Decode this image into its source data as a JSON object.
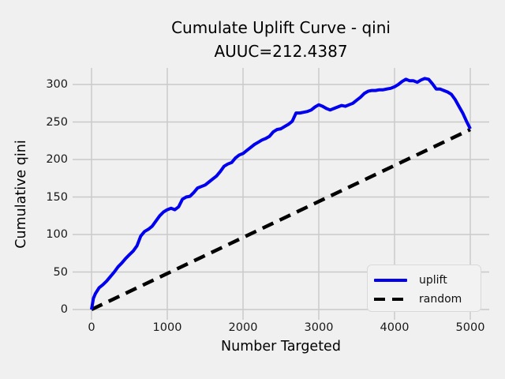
{
  "figure": {
    "title_line1": "Cumulate Uplift Curve - qini",
    "title_line2": "AUUC=212.4387",
    "background_color": "#f0f0f0",
    "grid_color": "#c9c9c9",
    "uplift_color": "#0000ee",
    "random_color": "#000000"
  },
  "legend": {
    "items": [
      {
        "label": "uplift",
        "style": "solid-blue"
      },
      {
        "label": "random",
        "style": "dashed-black"
      }
    ]
  },
  "chart_data": {
    "type": "line",
    "title": "Cumulate Uplift Curve - qini AUUC=212.4387",
    "auuc": 212.4387,
    "xlabel": "Number Targeted",
    "ylabel": "Cumulative qini",
    "xticks": [
      0,
      1000,
      2000,
      3000,
      4000,
      5000
    ],
    "yticks": [
      0,
      50,
      100,
      150,
      200,
      250,
      300
    ],
    "xlim": [
      -250,
      5250
    ],
    "ylim": [
      -16,
      322
    ],
    "grid": true,
    "legend_position": "lower right",
    "series": [
      {
        "name": "uplift",
        "color": "#0000ee",
        "style": "solid",
        "x": [
          0,
          25,
          50,
          100,
          150,
          200,
          250,
          300,
          350,
          400,
          450,
          500,
          550,
          600,
          650,
          700,
          750,
          800,
          850,
          900,
          950,
          1000,
          1050,
          1100,
          1150,
          1200,
          1250,
          1300,
          1350,
          1400,
          1450,
          1500,
          1550,
          1600,
          1650,
          1700,
          1750,
          1800,
          1850,
          1900,
          1950,
          2000,
          2050,
          2100,
          2150,
          2200,
          2250,
          2300,
          2350,
          2400,
          2450,
          2500,
          2550,
          2600,
          2650,
          2700,
          2750,
          2800,
          2850,
          2900,
          2950,
          3000,
          3050,
          3100,
          3150,
          3200,
          3250,
          3300,
          3350,
          3400,
          3450,
          3500,
          3550,
          3600,
          3650,
          3700,
          3750,
          3800,
          3850,
          3900,
          3950,
          4000,
          4050,
          4100,
          4150,
          4200,
          4250,
          4300,
          4350,
          4400,
          4450,
          4500,
          4550,
          4600,
          4650,
          4700,
          4750,
          4800,
          4850,
          4900,
          4950,
          5000
        ],
        "y": [
          0,
          15,
          21,
          29,
          33,
          38,
          44,
          50,
          57,
          62,
          68,
          73,
          78,
          85,
          98,
          104,
          107,
          111,
          118,
          125,
          130,
          133,
          135,
          133,
          137,
          147,
          150,
          151,
          156,
          162,
          164,
          166,
          170,
          174,
          178,
          184,
          191,
          194,
          196,
          202,
          206,
          208,
          212,
          216,
          220,
          223,
          226,
          228,
          231,
          237,
          240,
          241,
          244,
          247,
          251,
          262,
          262,
          263,
          264,
          266,
          270,
          273,
          271,
          268,
          266,
          268,
          270,
          272,
          271,
          273,
          275,
          279,
          283,
          288,
          291,
          292,
          292,
          293,
          293,
          294,
          295,
          297,
          300,
          304,
          307,
          305,
          305,
          303,
          306,
          308,
          307,
          301,
          294,
          294,
          292,
          290,
          287,
          280,
          271,
          262,
          251,
          241
        ]
      },
      {
        "name": "random",
        "color": "#000000",
        "style": "dashed",
        "x": [
          0,
          5000
        ],
        "y": [
          0,
          240
        ]
      }
    ]
  }
}
